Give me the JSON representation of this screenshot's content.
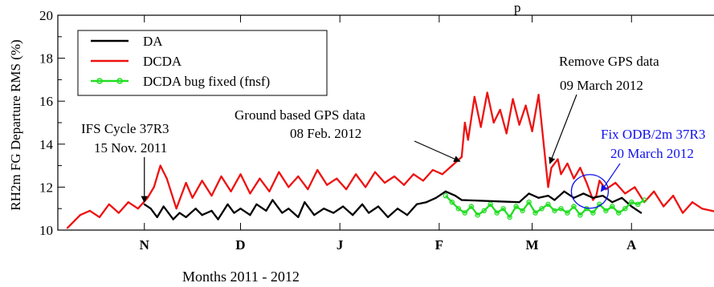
{
  "chart_data": {
    "type": "line",
    "title": "",
    "title_fragment": "p",
    "xlabel": "Months 2011 - 2012",
    "ylabel": "RH2m FG Departure RMS (%)",
    "ylim": [
      10,
      20
    ],
    "yticks": [
      10,
      12,
      14,
      16,
      18,
      20
    ],
    "xlim": [
      "2011-10-05",
      "2012-04-30"
    ],
    "month_ticks": [
      {
        "label": "N",
        "date": "2011-11-01"
      },
      {
        "label": "D",
        "date": "2011-12-01"
      },
      {
        "label": "J",
        "date": "2012-01-01"
      },
      {
        "label": "F",
        "date": "2012-02-01"
      },
      {
        "label": "M",
        "date": "2012-03-01"
      },
      {
        "label": "A",
        "date": "2012-04-01"
      }
    ],
    "grid": false,
    "legend_position": "top-left",
    "series": [
      {
        "name": "DA",
        "color": "#000000",
        "marker": "none",
        "x": [
          "2011-11-01",
          "2011-11-03",
          "2011-11-05",
          "2011-11-07",
          "2011-11-10",
          "2011-11-12",
          "2011-11-14",
          "2011-11-17",
          "2011-11-19",
          "2011-11-22",
          "2011-11-24",
          "2011-11-27",
          "2011-11-29",
          "2011-12-01",
          "2011-12-04",
          "2011-12-06",
          "2011-12-09",
          "2011-12-11",
          "2011-12-14",
          "2011-12-16",
          "2011-12-19",
          "2011-12-21",
          "2011-12-24",
          "2011-12-27",
          "2011-12-30",
          "2012-01-02",
          "2012-01-05",
          "2012-01-08",
          "2012-01-10",
          "2012-01-13",
          "2012-01-16",
          "2012-01-19",
          "2012-01-22",
          "2012-01-25",
          "2012-01-28",
          "2012-01-31",
          "2012-02-03",
          "2012-02-06",
          "2012-02-08",
          "2012-02-26",
          "2012-02-29",
          "2012-03-03",
          "2012-03-06",
          "2012-03-08",
          "2012-03-11",
          "2012-03-14",
          "2012-03-17",
          "2012-03-20",
          "2012-03-23",
          "2012-03-26",
          "2012-03-29",
          "2012-04-01",
          "2012-04-04"
        ],
        "values": [
          11.2,
          11.0,
          10.6,
          11.1,
          10.5,
          10.8,
          10.6,
          11.0,
          10.7,
          10.9,
          10.5,
          11.2,
          10.8,
          11.0,
          10.7,
          11.2,
          10.9,
          11.4,
          10.8,
          11.0,
          10.6,
          11.3,
          10.7,
          11.0,
          10.8,
          11.1,
          10.7,
          11.2,
          10.8,
          11.1,
          10.6,
          11.0,
          10.7,
          11.2,
          11.3,
          11.5,
          11.8,
          11.6,
          11.4,
          11.3,
          11.7,
          11.5,
          11.6,
          11.4,
          11.8,
          11.5,
          11.7,
          11.5,
          11.6,
          11.3,
          11.5,
          11.1,
          10.8
        ]
      },
      {
        "name": "DCDA",
        "color": "#ee1111",
        "marker": "none",
        "x": [
          "2011-10-08",
          "2011-10-12",
          "2011-10-15",
          "2011-10-18",
          "2011-10-21",
          "2011-10-24",
          "2011-10-27",
          "2011-10-30",
          "2011-11-02",
          "2011-11-04",
          "2011-11-06",
          "2011-11-08",
          "2011-11-11",
          "2011-11-14",
          "2011-11-16",
          "2011-11-19",
          "2011-11-22",
          "2011-11-25",
          "2011-11-28",
          "2011-12-01",
          "2011-12-04",
          "2011-12-07",
          "2011-12-10",
          "2011-12-13",
          "2011-12-16",
          "2011-12-19",
          "2011-12-22",
          "2011-12-25",
          "2011-12-28",
          "2011-12-31",
          "2012-01-03",
          "2012-01-06",
          "2012-01-09",
          "2012-01-12",
          "2012-01-15",
          "2012-01-18",
          "2012-01-21",
          "2012-01-24",
          "2012-01-27",
          "2012-01-30",
          "2012-02-02",
          "2012-02-05",
          "2012-02-08",
          "2012-02-09",
          "2012-02-10",
          "2012-02-12",
          "2012-02-14",
          "2012-02-16",
          "2012-02-18",
          "2012-02-20",
          "2012-02-22",
          "2012-02-24",
          "2012-02-26",
          "2012-02-28",
          "2012-03-01",
          "2012-03-03",
          "2012-03-06",
          "2012-03-07",
          "2012-03-09",
          "2012-03-10",
          "2012-03-12",
          "2012-03-14",
          "2012-03-16",
          "2012-03-18",
          "2012-03-20",
          "2012-03-21",
          "2012-03-22",
          "2012-03-24",
          "2012-03-27",
          "2012-03-30",
          "2012-04-02",
          "2012-04-05",
          "2012-04-08",
          "2012-04-11",
          "2012-04-14",
          "2012-04-17",
          "2012-04-20",
          "2012-04-23",
          "2012-04-26",
          "2012-04-29"
        ],
        "values": [
          10.1,
          10.7,
          10.9,
          10.6,
          11.2,
          10.8,
          11.3,
          11.0,
          11.5,
          12.0,
          13.0,
          12.4,
          11.0,
          12.2,
          11.5,
          12.3,
          11.6,
          12.5,
          11.8,
          12.6,
          11.7,
          12.4,
          11.8,
          12.7,
          12.0,
          12.5,
          11.9,
          12.8,
          12.1,
          12.4,
          11.9,
          12.6,
          12.0,
          12.7,
          12.2,
          12.5,
          12.1,
          12.6,
          12.3,
          12.8,
          12.6,
          13.0,
          13.4,
          15.0,
          14.2,
          16.2,
          14.8,
          16.4,
          15.0,
          15.6,
          14.5,
          16.1,
          14.9,
          15.8,
          14.6,
          16.3,
          12.0,
          12.9,
          13.3,
          12.6,
          13.1,
          12.4,
          12.9,
          12.2,
          11.4,
          11.6,
          12.3,
          11.9,
          12.2,
          11.7,
          12.0,
          11.3,
          11.8,
          11.1,
          11.6,
          10.8,
          11.3,
          11.0,
          10.9,
          10.8
        ]
      },
      {
        "name": "DCDA bug fixed (fnsf)",
        "color": "#22dd22",
        "marker": "circle",
        "x": [
          "2012-02-03",
          "2012-02-05",
          "2012-02-07",
          "2012-02-09",
          "2012-02-11",
          "2012-02-13",
          "2012-02-15",
          "2012-02-17",
          "2012-02-19",
          "2012-02-21",
          "2012-02-23",
          "2012-02-25",
          "2012-02-27",
          "2012-02-29",
          "2012-03-02",
          "2012-03-04",
          "2012-03-06",
          "2012-03-08",
          "2012-03-10",
          "2012-03-12",
          "2012-03-14",
          "2012-03-16",
          "2012-03-18",
          "2012-03-20",
          "2012-03-22",
          "2012-03-24",
          "2012-03-26",
          "2012-03-28",
          "2012-03-30",
          "2012-04-01",
          "2012-04-03",
          "2012-04-05"
        ],
        "values": [
          11.6,
          11.3,
          11.0,
          10.8,
          11.1,
          10.7,
          10.9,
          11.2,
          10.8,
          11.0,
          10.6,
          11.1,
          10.9,
          11.3,
          10.8,
          11.0,
          11.2,
          10.9,
          11.0,
          10.8,
          11.1,
          10.7,
          11.0,
          10.8,
          11.2,
          10.9,
          11.1,
          10.8,
          11.0,
          11.3,
          11.2,
          11.4
        ]
      }
    ],
    "annotations": [
      {
        "id": "ifs",
        "lines": [
          "IFS Cycle 37R3",
          "15 Nov. 2011"
        ],
        "color": "#000000"
      },
      {
        "id": "gps_ground",
        "lines": [
          "Ground based GPS data",
          "08 Feb. 2012"
        ],
        "color": "#000000"
      },
      {
        "id": "gps_remove",
        "lines": [
          "Remove GPS data",
          "09 March 2012"
        ],
        "color": "#000000"
      },
      {
        "id": "odb_fix",
        "lines": [
          "Fix ODB/2m 37R3",
          "20 March 2012"
        ],
        "color": "#1111ee"
      }
    ]
  }
}
